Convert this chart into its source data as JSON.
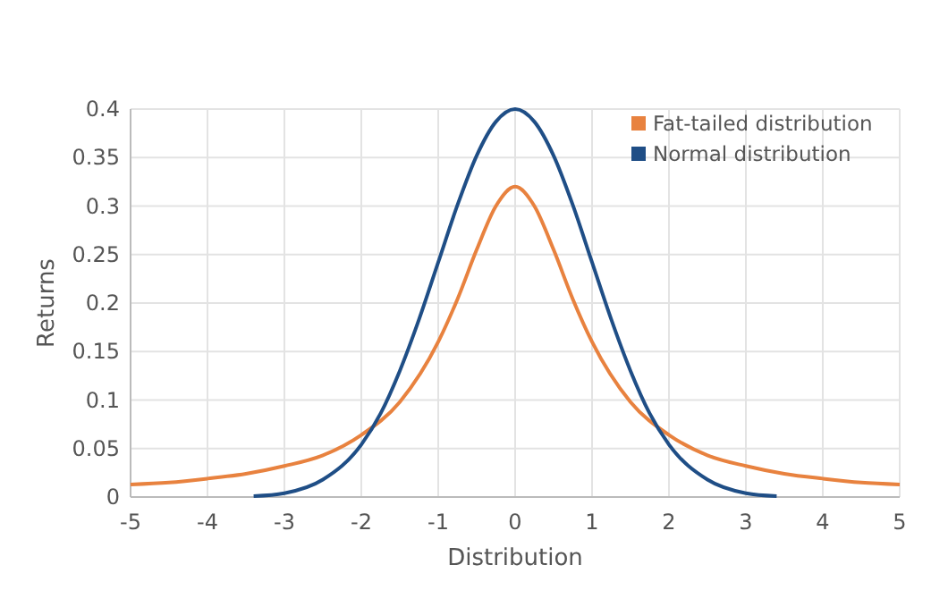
{
  "chart_data": {
    "type": "line",
    "xlabel": "Distribution",
    "ylabel": "Returns",
    "xlim": [
      -5,
      5
    ],
    "xticks": [
      -5,
      -4,
      -3,
      -2,
      -1,
      0,
      1,
      2,
      3,
      4,
      5
    ],
    "ylim": [
      0,
      0.4
    ],
    "yticks": [
      0,
      0.05,
      0.1,
      0.15,
      0.2,
      0.25,
      0.3,
      0.35,
      0.4
    ],
    "grid": true,
    "legend": "top right",
    "series": [
      {
        "name": "Fat-tailed distribution",
        "color": "#e8823f",
        "x": [
          -5,
          -4.5,
          -4,
          -3.5,
          -3,
          -2.5,
          -2,
          -1.5,
          -1,
          -0.75,
          -0.5,
          -0.25,
          0,
          0.25,
          0.5,
          0.75,
          1,
          1.5,
          2,
          2.5,
          3,
          3.5,
          4,
          4.5,
          5
        ],
        "values": [
          0.013,
          0.015,
          0.019,
          0.024,
          0.032,
          0.043,
          0.064,
          0.098,
          0.16,
          0.204,
          0.255,
          0.3,
          0.32,
          0.3,
          0.255,
          0.204,
          0.16,
          0.098,
          0.064,
          0.043,
          0.032,
          0.024,
          0.019,
          0.015,
          0.013
        ]
      },
      {
        "name": "Normal distribution",
        "color": "#1f4e86",
        "x": [
          -3.4,
          -3,
          -2.5,
          -2,
          -1.75,
          -1.5,
          -1.25,
          -1,
          -0.75,
          -0.5,
          -0.25,
          0,
          0.25,
          0.5,
          0.75,
          1,
          1.25,
          1.5,
          1.75,
          2,
          2.5,
          3,
          3.4
        ],
        "values": [
          0.001,
          0.004,
          0.018,
          0.054,
          0.086,
          0.13,
          0.183,
          0.242,
          0.301,
          0.352,
          0.387,
          0.4,
          0.387,
          0.352,
          0.301,
          0.242,
          0.183,
          0.13,
          0.086,
          0.054,
          0.018,
          0.004,
          0.001
        ]
      }
    ]
  }
}
